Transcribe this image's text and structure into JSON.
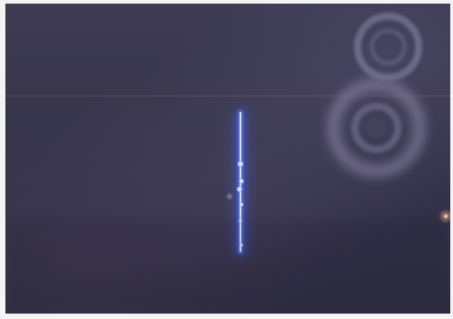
{
  "image": {
    "kind": "photograph",
    "subject_icon": "blue-light-streak",
    "colors": {
      "background": "#35334a",
      "streak_core": "#dbe8ff",
      "streak_glow": "#3f63ff",
      "reflection_rings": "#9e9ab8",
      "scan_line": "#b06a6a"
    }
  }
}
